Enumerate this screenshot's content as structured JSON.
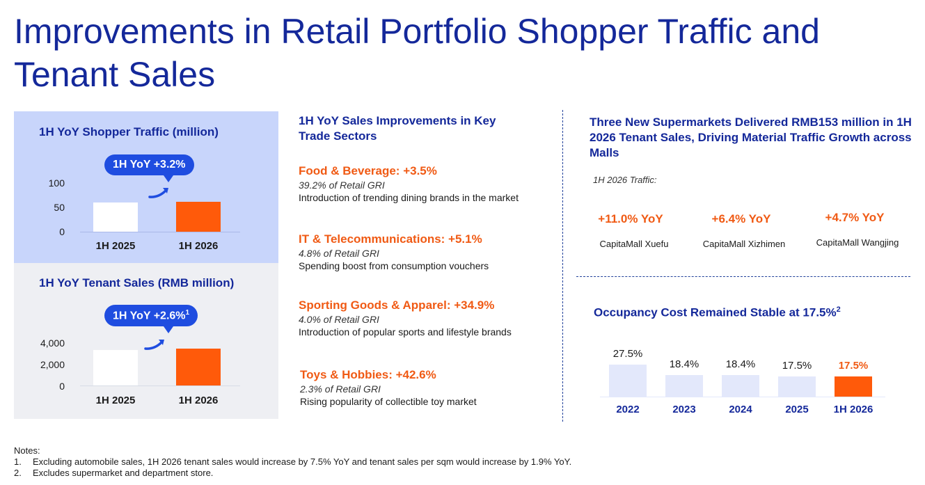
{
  "title": "Improvements in Retail Portfolio Shopper Traffic and Tenant Sales",
  "traffic_panel": {
    "title": "1H YoY Shopper Traffic (million)",
    "pill": "1H YoY +3.2%",
    "y_ticks": [
      "100",
      "50",
      "0"
    ],
    "categories": [
      "1H 2025",
      "1H 2026"
    ]
  },
  "sales_panel": {
    "title": "1H YoY Tenant Sales (RMB million)",
    "pill": "1H YoY +2.6%",
    "pill_sup": "1",
    "y_ticks": [
      "4,000",
      "2,000",
      "0"
    ],
    "categories": [
      "1H 2025",
      "1H 2026"
    ]
  },
  "chart_data": [
    {
      "type": "bar",
      "title": "1H YoY Shopper Traffic (million)",
      "categories": [
        "1H 2025",
        "1H 2026"
      ],
      "values": [
        60,
        62
      ],
      "ylim": [
        0,
        100
      ],
      "colors": [
        "#ffffff",
        "#ff5a0a"
      ]
    },
    {
      "type": "bar",
      "title": "1H YoY Tenant Sales (RMB million)",
      "categories": [
        "1H 2025",
        "1H 2026"
      ],
      "values": [
        3300,
        3390
      ],
      "ylim": [
        0,
        4000
      ],
      "colors": [
        "#ffffff",
        "#ff5a0a"
      ]
    },
    {
      "type": "bar",
      "title": "Occupancy Cost Remained Stable at 17.5%",
      "categories": [
        "2022",
        "2023",
        "2024",
        "2025",
        "1H 2026"
      ],
      "values": [
        27.5,
        18.4,
        18.4,
        17.5,
        17.5
      ],
      "value_labels": [
        "27.5%",
        "18.4%",
        "18.4%",
        "17.5%",
        "17.5%"
      ],
      "colors": [
        "#e3e8fb",
        "#e3e8fb",
        "#e3e8fb",
        "#e3e8fb",
        "#ff5a0a"
      ]
    }
  ],
  "sectors_heading": "1H YoY Sales Improvements in Key Trade Sectors",
  "sectors": [
    {
      "title": "Food & Beverage: +3.5%",
      "share": "39.2% of Retail GRI",
      "desc": "Introduction of trending dining brands in the market"
    },
    {
      "title": "IT & Telecommunications: +5.1%",
      "share": "4.8% of Retail GRI",
      "desc": "Spending boost from consumption vouchers"
    },
    {
      "title": "Sporting Goods & Apparel: +34.9%",
      "share": "4.0% of Retail GRI",
      "desc": "Introduction of popular sports and lifestyle brands"
    },
    {
      "title": "Toys & Hobbies: +42.6%",
      "share": "2.3% of Retail GRI",
      "desc": "Rising popularity of collectible toy market"
    }
  ],
  "supermarkets": {
    "heading": "Three New Supermarkets Delivered RMB153 million in 1H 2026 Tenant Sales, Driving Material Traffic Growth across Malls",
    "traffic_label": "1H 2026 Traffic:",
    "malls": [
      {
        "yoy": "+11.0% YoY",
        "name": "CapitaMall Xuefu"
      },
      {
        "yoy": "+6.4% YoY",
        "name": "CapitaMall Xizhimen"
      },
      {
        "yoy": "+4.7% YoY",
        "name": "CapitaMall Wangjing"
      }
    ]
  },
  "occupancy": {
    "heading": "Occupancy Cost Remained Stable at 17.5%",
    "heading_sup": "2"
  },
  "notes": {
    "heading": "Notes:",
    "items": [
      {
        "num": "1.",
        "text": "Excluding automobile sales, 1H 2026 tenant sales would increase by 7.5% YoY and tenant sales per sqm would increase by 1.9% YoY."
      },
      {
        "num": "2.",
        "text": "Excludes supermarket and department store."
      }
    ]
  },
  "colors": {
    "navy": "#14289a",
    "orange": "#f05a14",
    "bar_orange": "#ff5a0a",
    "pill_blue": "#1f4de0",
    "traffic_bg": "#c8d5fb",
    "sales_bg": "#eeeff3",
    "occ_bar": "#e3e8fb"
  }
}
